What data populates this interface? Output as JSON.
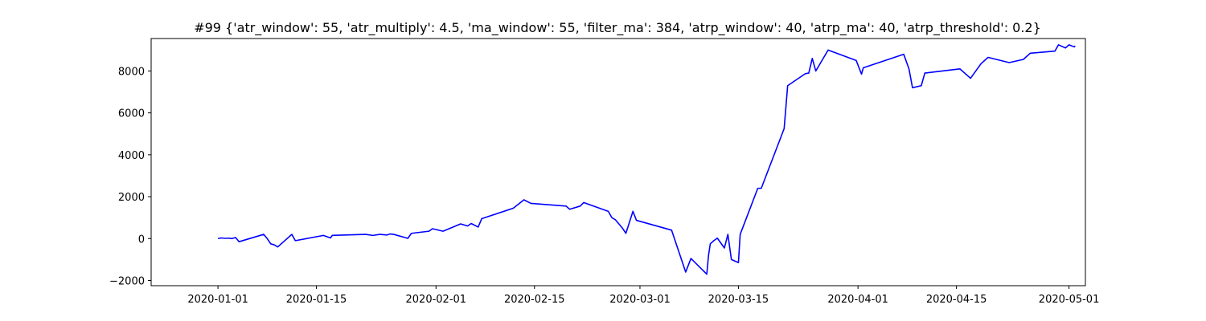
{
  "chart_data": {
    "type": "line",
    "title": "#99 {'atr_window': 55, 'atr_multiply': 4.5, 'ma_window': 55, 'filter_ma': 384, 'atrp_window': 40, 'atrp_ma': 40, 'atrp_threshold': 0.2}",
    "xlabel": "",
    "ylabel": "",
    "x_axis_type": "date",
    "xlim": [
      "2019-12-22T12:00",
      "2020-05-03T08:00"
    ],
    "ylim": [
      -2250,
      9550
    ],
    "x_ticks": [
      "2020-01-01",
      "2020-01-15",
      "2020-02-01",
      "2020-02-15",
      "2020-03-01",
      "2020-03-15",
      "2020-04-01",
      "2020-04-15",
      "2020-05-01"
    ],
    "x_tick_labels": [
      "2020-01-01",
      "2020-01-15",
      "2020-02-01",
      "2020-02-15",
      "2020-03-01",
      "2020-03-15",
      "2020-04-01",
      "2020-04-15",
      "2020-05-01"
    ],
    "y_ticks": [
      -2000,
      0,
      2000,
      4000,
      6000,
      8000
    ],
    "y_tick_labels": [
      "−2000",
      "0",
      "2000",
      "4000",
      "6000",
      "8000"
    ],
    "grid": false,
    "series": [
      {
        "color": "#0000ff",
        "x": [
          "2020-01-01T00:00",
          "2020-01-01T12:00",
          "2020-01-02T00:00",
          "2020-01-02T12:00",
          "2020-01-03T00:00",
          "2020-01-03T12:00",
          "2020-01-04T00:00",
          "2020-01-07T12:00",
          "2020-01-08T00:00",
          "2020-01-08T12:00",
          "2020-01-09T00:00",
          "2020-01-09T12:00",
          "2020-01-11T12:00",
          "2020-01-12T00:00",
          "2020-01-16T00:00",
          "2020-01-17T00:00",
          "2020-01-17T06:00",
          "2020-01-22T00:00",
          "2020-01-23T00:00",
          "2020-01-24T00:00",
          "2020-01-25T00:00",
          "2020-01-25T12:00",
          "2020-01-26T00:00",
          "2020-01-28T00:00",
          "2020-01-28T12:00",
          "2020-01-31T00:00",
          "2020-01-31T12:00",
          "2020-02-02T00:00",
          "2020-02-04T12:00",
          "2020-02-05T12:00",
          "2020-02-06T00:00",
          "2020-02-07T00:00",
          "2020-02-07T12:00",
          "2020-02-12T00:00",
          "2020-02-13T12:00",
          "2020-02-14T12:00",
          "2020-02-19T12:00",
          "2020-02-20T00:00",
          "2020-02-21T12:00",
          "2020-02-22T00:00",
          "2020-02-25T12:00",
          "2020-02-26T00:00",
          "2020-02-26T12:00",
          "2020-02-27T00:00",
          "2020-02-27T12:00",
          "2020-02-28T00:00",
          "2020-02-29T00:00",
          "2020-02-29T12:00",
          "2020-03-05T12:00",
          "2020-03-07T12:00",
          "2020-03-08T06:00",
          "2020-03-10T12:00",
          "2020-03-10T18:00",
          "2020-03-11T00:00",
          "2020-03-11T12:00",
          "2020-03-12T00:00",
          "2020-03-13T00:00",
          "2020-03-13T12:00",
          "2020-03-14T00:00",
          "2020-03-15T00:00",
          "2020-03-15T06:00",
          "2020-03-17T18:00",
          "2020-03-18T06:00",
          "2020-03-21T12:00",
          "2020-03-22T00:00",
          "2020-03-24T12:00",
          "2020-03-25T00:00",
          "2020-03-25T12:00",
          "2020-03-26T00:00",
          "2020-03-27T18:00",
          "2020-03-31T18:00",
          "2020-04-01T12:00",
          "2020-04-01T18:00",
          "2020-04-07T12:00",
          "2020-04-08T06:00",
          "2020-04-08T18:00",
          "2020-04-10T00:00",
          "2020-04-10T12:00",
          "2020-04-15T12:00",
          "2020-04-17T00:00",
          "2020-04-18T12:00",
          "2020-04-19T12:00",
          "2020-04-22T12:00",
          "2020-04-24T12:00",
          "2020-04-25T12:00",
          "2020-04-29T00:00",
          "2020-04-29T12:00",
          "2020-04-30T12:00",
          "2020-05-01T00:00",
          "2020-05-01T18:00",
          "2020-05-01T21:00"
        ],
        "values": [
          0,
          30,
          10,
          20,
          0,
          50,
          -150,
          200,
          0,
          -250,
          -300,
          -400,
          200,
          -100,
          150,
          30,
          150,
          200,
          150,
          200,
          170,
          220,
          200,
          10,
          250,
          350,
          470,
          350,
          700,
          600,
          720,
          550,
          950,
          1450,
          1850,
          1680,
          1550,
          1400,
          1550,
          1720,
          1300,
          1000,
          900,
          700,
          500,
          250,
          1300,
          870,
          400,
          -1600,
          -950,
          -1700,
          -800,
          -250,
          -100,
          20,
          -450,
          200,
          -1000,
          -1150,
          200,
          2400,
          2400,
          5250,
          7300,
          7870,
          7900,
          8600,
          8000,
          9000,
          8500,
          7850,
          8150,
          8800,
          8100,
          7200,
          7300,
          7900,
          8100,
          7650,
          8350,
          8650,
          8400,
          8550,
          8850,
          8950,
          9250,
          9100,
          9250,
          9150,
          9200
        ]
      }
    ]
  }
}
